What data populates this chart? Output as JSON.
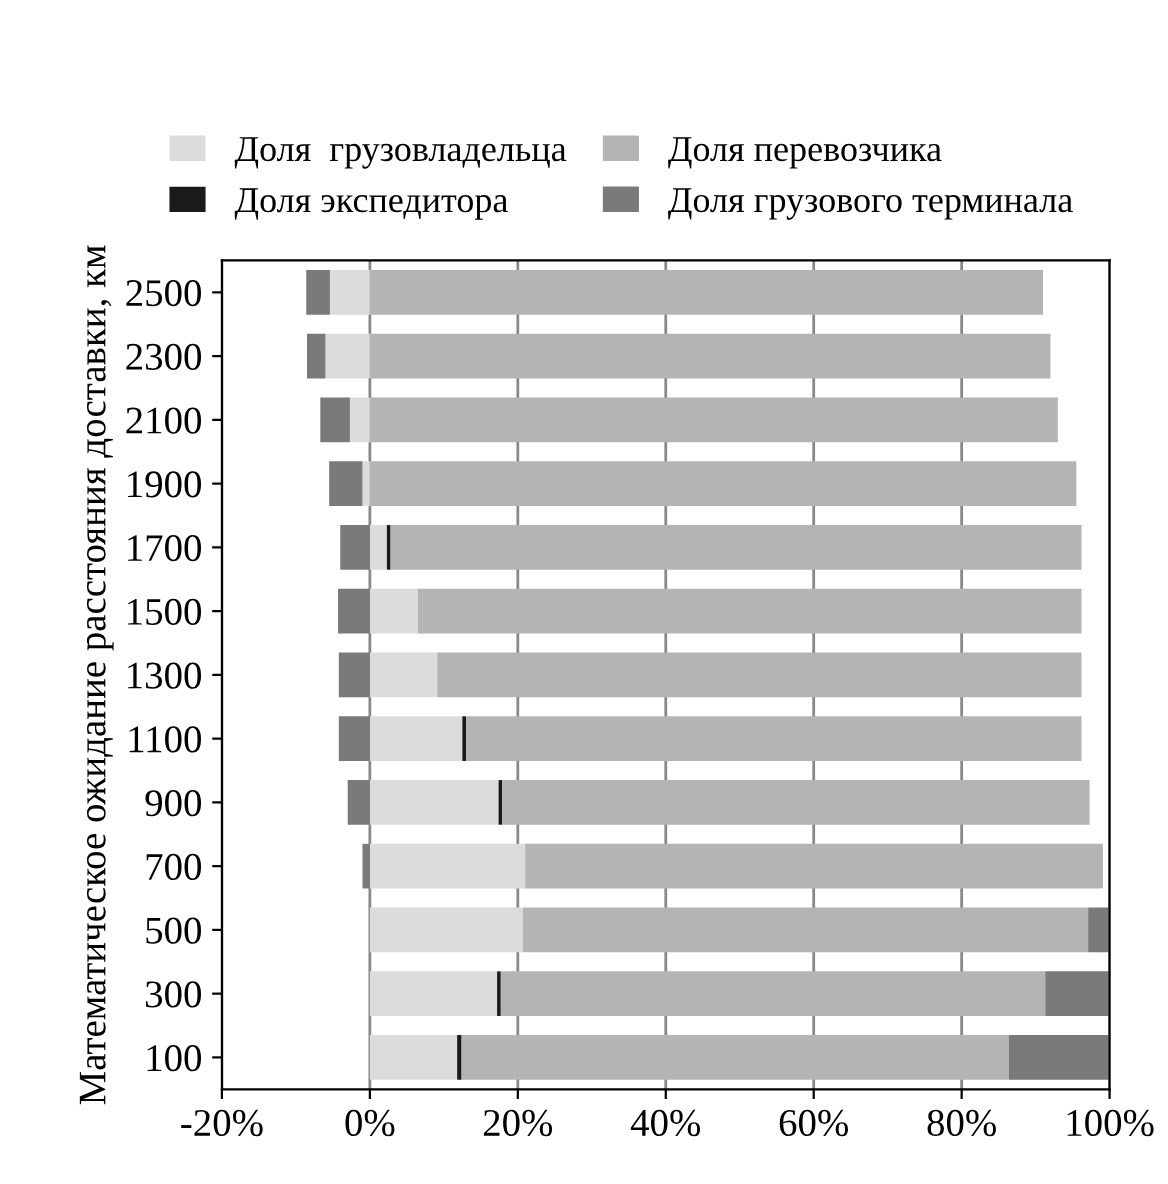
{
  "chart_data": {
    "type": "bar",
    "orientation": "horizontal",
    "stacked": true,
    "ylabel": "Математическое ожидание расстояния доставки, км",
    "categories": [
      "2500",
      "2300",
      "2100",
      "1900",
      "1700",
      "1500",
      "1300",
      "1100",
      "900",
      "700",
      "500",
      "300",
      "100"
    ],
    "series": [
      {
        "name": "Доля  грузовладельца",
        "color": "#dcdcdc",
        "values": [
          -5.4,
          -6,
          -2.7,
          -1,
          2.3,
          6.5,
          9.1,
          12.5,
          17.4,
          21,
          20.7,
          17.2,
          11.8
        ]
      },
      {
        "name": "Доля экспедитора",
        "color": "#1a1a1a",
        "values": [
          0,
          0,
          0,
          0,
          0.5,
          0,
          0,
          0.5,
          0.5,
          0,
          0,
          0.5,
          0.6
        ]
      },
      {
        "name": "Доля перевозчика",
        "color": "#b4b4b4",
        "values": [
          91,
          92,
          93,
          95.5,
          93.4,
          89.7,
          87.1,
          83.2,
          79.4,
          78.1,
          76.4,
          73.6,
          74
        ]
      },
      {
        "name": "Доля грузового терминала",
        "color": "#7a7a7a",
        "values": [
          -3.2,
          -2.5,
          -4,
          -4.5,
          -4,
          -4.3,
          -4.2,
          -4.2,
          -3,
          -1,
          2.9,
          8.7,
          13.6
        ]
      }
    ],
    "xlim": [
      -20,
      100
    ],
    "xticks": [
      {
        "value": -20,
        "label": "-20%"
      },
      {
        "value": 0,
        "label": "0%"
      },
      {
        "value": 20,
        "label": "20%"
      },
      {
        "value": 40,
        "label": "40%"
      },
      {
        "value": 60,
        "label": "60%"
      },
      {
        "value": 80,
        "label": "80%"
      },
      {
        "value": 100,
        "label": "100%"
      }
    ],
    "grid": "x",
    "legend": "top"
  }
}
